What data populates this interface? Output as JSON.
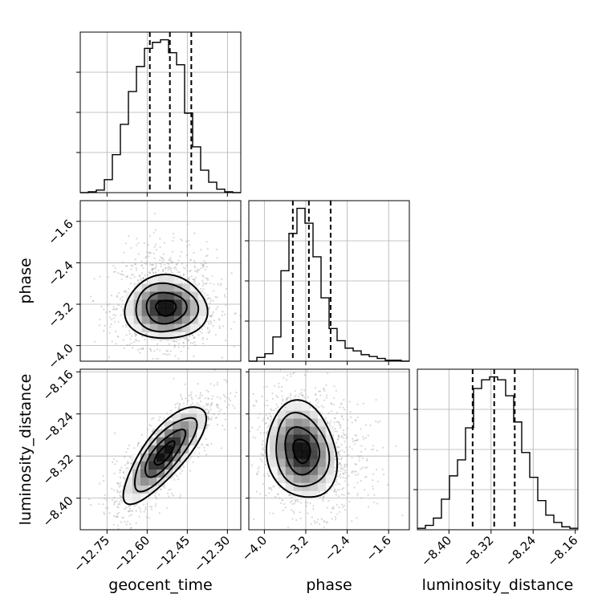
{
  "chart_data": {
    "type": "corner",
    "parameters": [
      "geocent_time",
      "phase",
      "luminosity_distance"
    ],
    "grid": true,
    "panels": {
      "geocent_time": {
        "xlim": [
          -12.85,
          -12.25
        ],
        "ticks": [
          -12.75,
          -12.6,
          -12.45,
          -12.3
        ],
        "tick_labels": [
          "−12.75",
          "−12.60",
          "−12.45",
          "−12.30"
        ],
        "quantiles": [
          -12.59,
          -12.515,
          -12.435
        ],
        "hist_edges": [
          -12.85,
          -12.82,
          -12.79,
          -12.76,
          -12.73,
          -12.7,
          -12.67,
          -12.64,
          -12.61,
          -12.58,
          -12.55,
          -12.52,
          -12.49,
          -12.46,
          -12.43,
          -12.4,
          -12.37,
          -12.34,
          -12.31,
          -12.28,
          -12.25
        ],
        "hist_counts": [
          0,
          1,
          3,
          15,
          44,
          79,
          117,
          146,
          167,
          174,
          177,
          162,
          148,
          92,
          53,
          26,
          12,
          4,
          1,
          0
        ]
      },
      "phase": {
        "xlim": [
          -4.3,
          -1.2
        ],
        "ticks": [
          -4.0,
          -3.2,
          -2.4,
          -1.6
        ],
        "tick_labels": [
          "−4.0",
          "−3.2",
          "−2.4",
          "−1.6"
        ],
        "quantiles": [
          -3.45,
          -3.14,
          -2.72
        ],
        "hist_edges": [
          -4.3,
          -4.145,
          -3.99,
          -3.835,
          -3.68,
          -3.525,
          -3.37,
          -3.215,
          -3.06,
          -2.905,
          -2.75,
          -2.595,
          -2.44,
          -2.285,
          -2.13,
          -1.975,
          -1.82,
          -1.665,
          -1.51,
          -1.355,
          -1.2
        ],
        "hist_counts": [
          0,
          4,
          8,
          26,
          97,
          137,
          164,
          148,
          112,
          68,
          35,
          22,
          14,
          11,
          7,
          5,
          3,
          1,
          1,
          0
        ]
      },
      "luminosity_distance": {
        "xlim": [
          -8.46,
          -8.155
        ],
        "ticks": [
          -8.4,
          -8.32,
          -8.24,
          -8.16
        ],
        "tick_labels": [
          "−8.40",
          "−8.32",
          "−8.24",
          "−8.16"
        ],
        "quantiles": [
          -8.355,
          -8.314,
          -8.275
        ],
        "hist_edges": [
          -8.46,
          -8.44475,
          -8.4295,
          -8.41425,
          -8.399,
          -8.38375,
          -8.3685,
          -8.35325,
          -8.338,
          -8.32275,
          -8.3075,
          -8.29225,
          -8.277,
          -8.26175,
          -8.2465,
          -8.23125,
          -8.216,
          -8.20075,
          -8.1855,
          -8.17025,
          -8.155
        ],
        "hist_counts": [
          1,
          3,
          8,
          21,
          37,
          48,
          70,
          97,
          103,
          105,
          103,
          92,
          74,
          53,
          36,
          20,
          10,
          5,
          2,
          1
        ]
      }
    },
    "pairs": [
      {
        "x": "geocent_time",
        "y": "phase",
        "ylim": [
          -4.3,
          -1.2
        ],
        "ylim_note": "y axis of row 2",
        "center": [
          -12.53,
          -3.27
        ],
        "sigma": [
          0.075,
          0.3
        ],
        "corr": 0.0
      },
      {
        "x": "geocent_time",
        "y": "luminosity_distance",
        "center": [
          -12.535,
          -8.315
        ],
        "sigma": [
          0.075,
          0.045
        ],
        "corr": 0.78
      },
      {
        "x": "phase",
        "y": "luminosity_distance",
        "center": [
          -3.28,
          -8.31
        ],
        "sigma": [
          0.33,
          0.045
        ],
        "corr": -0.15
      }
    ]
  }
}
